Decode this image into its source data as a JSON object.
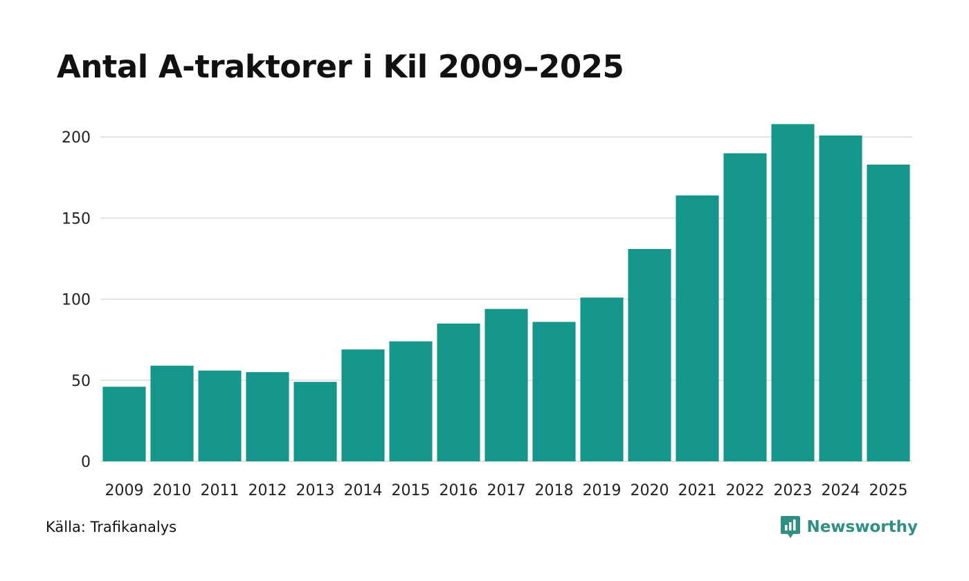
{
  "chart_data": {
    "type": "bar",
    "title": "Antal A-traktorer i Kil 2009–2025",
    "xlabel": "",
    "ylabel": "",
    "categories": [
      "2009",
      "2010",
      "2011",
      "2012",
      "2013",
      "2014",
      "2015",
      "2016",
      "2017",
      "2018",
      "2019",
      "2020",
      "2021",
      "2022",
      "2023",
      "2024",
      "2025"
    ],
    "values": [
      46,
      59,
      56,
      55,
      49,
      69,
      74,
      85,
      94,
      86,
      101,
      131,
      164,
      190,
      208,
      201,
      183
    ],
    "ylim": [
      0,
      215
    ],
    "yticks": [
      0,
      50,
      100,
      150,
      200
    ],
    "grid": true,
    "bar_color": "#15968a",
    "grid_color": "#e3e3e3"
  },
  "footer": {
    "source": "Källa: Trafikanalys",
    "brand": "Newsworthy",
    "brand_color": "#2f8f85"
  }
}
